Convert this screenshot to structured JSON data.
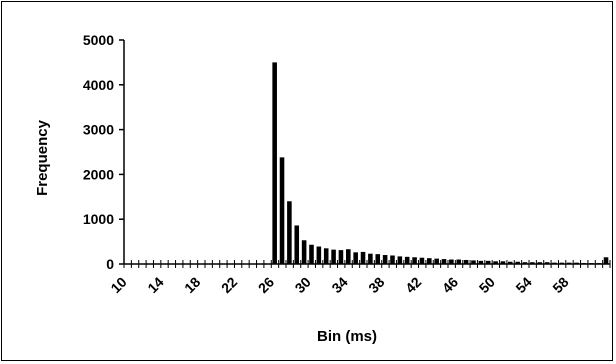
{
  "chart_data": {
    "type": "bar",
    "xlabel": "Bin (ms)",
    "ylabel": "Frequency",
    "ylim": [
      0,
      5000
    ],
    "y_ticks": [
      0,
      1000,
      2000,
      3000,
      4000,
      5000
    ],
    "x_tick_labels": [
      "10",
      "14",
      "18",
      "22",
      "26",
      "30",
      "34",
      "38",
      "42",
      "46",
      "50",
      "54",
      "58"
    ],
    "x_tick_label_bins": [
      10,
      14,
      18,
      22,
      26,
      30,
      34,
      38,
      42,
      46,
      50,
      54,
      58
    ],
    "bin_width_ms": 0.8,
    "bins": [
      10.0,
      10.8,
      11.6,
      12.4,
      13.2,
      14.0,
      14.8,
      15.6,
      16.4,
      17.2,
      18.0,
      18.8,
      19.6,
      20.4,
      21.2,
      22.0,
      22.8,
      23.6,
      24.4,
      25.2,
      26.0,
      26.8,
      27.6,
      28.4,
      29.2,
      30.0,
      30.8,
      31.6,
      32.4,
      33.2,
      34.0,
      34.8,
      35.6,
      36.4,
      37.2,
      38.0,
      38.8,
      39.6,
      40.4,
      41.2,
      42.0,
      42.8,
      43.6,
      44.4,
      45.2,
      46.0,
      46.8,
      47.6,
      48.4,
      49.2,
      50.0,
      50.8,
      51.6,
      52.4,
      53.2,
      54.0,
      54.8,
      55.6,
      56.4,
      57.2,
      58.0,
      58.8,
      59.6,
      60.4,
      61.2,
      62.0
    ],
    "values": [
      0,
      0,
      0,
      0,
      0,
      0,
      0,
      0,
      0,
      0,
      0,
      0,
      0,
      0,
      0,
      0,
      0,
      0,
      0,
      0,
      4500,
      2380,
      1400,
      860,
      530,
      430,
      390,
      350,
      320,
      310,
      330,
      260,
      270,
      230,
      220,
      200,
      190,
      170,
      160,
      150,
      140,
      130,
      120,
      110,
      100,
      100,
      90,
      80,
      70,
      70,
      60,
      60,
      50,
      50,
      40,
      40,
      40,
      40,
      30,
      30,
      30,
      30,
      20,
      20,
      20,
      150
    ]
  }
}
